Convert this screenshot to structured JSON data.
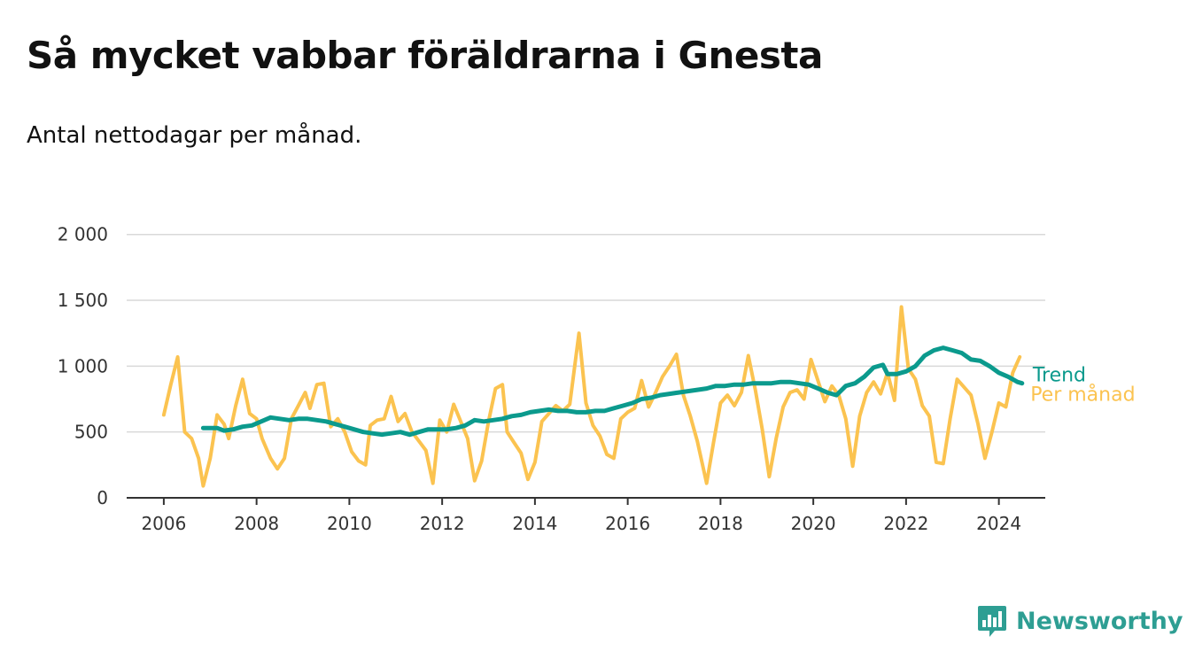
{
  "title": "Så mycket vabbar föräldrarna i Gnesta",
  "subtitle": "Antal nettodagar per månad.",
  "brand": {
    "name": "Newsworthy",
    "icon": "bar-chart-badge-icon",
    "color": "#2e9e93"
  },
  "chart_data": {
    "type": "line",
    "title": "Så mycket vabbar föräldrarna i Gnesta",
    "subtitle": "Antal nettodagar per månad.",
    "xlabel": "",
    "ylabel": "",
    "x_range": [
      2005.2,
      2025.0
    ],
    "ylim": [
      0,
      2200
    ],
    "x_ticks": [
      {
        "value": 2006,
        "label": "2006"
      },
      {
        "value": 2008,
        "label": "2008"
      },
      {
        "value": 2010,
        "label": "2010"
      },
      {
        "value": 2012,
        "label": "2012"
      },
      {
        "value": 2014,
        "label": "2014"
      },
      {
        "value": 2016,
        "label": "2016"
      },
      {
        "value": 2018,
        "label": "2018"
      },
      {
        "value": 2020,
        "label": "2020"
      },
      {
        "value": 2022,
        "label": "2022"
      },
      {
        "value": 2024,
        "label": "2024"
      }
    ],
    "y_ticks": [
      {
        "value": 0,
        "label": "0"
      },
      {
        "value": 500,
        "label": "500"
      },
      {
        "value": 1000,
        "label": "1 000"
      },
      {
        "value": 1500,
        "label": "1 500"
      },
      {
        "value": 2000,
        "label": "2 000"
      }
    ],
    "grid": true,
    "legend": "inline labels at line ends",
    "series": [
      {
        "name": "Per månad",
        "color": "#fbc350",
        "points": [
          [
            2006.0,
            630
          ],
          [
            2006.15,
            860
          ],
          [
            2006.3,
            1070
          ],
          [
            2006.45,
            500
          ],
          [
            2006.6,
            450
          ],
          [
            2006.75,
            300
          ],
          [
            2006.85,
            90
          ],
          [
            2007.0,
            300
          ],
          [
            2007.15,
            630
          ],
          [
            2007.3,
            560
          ],
          [
            2007.4,
            450
          ],
          [
            2007.55,
            700
          ],
          [
            2007.7,
            900
          ],
          [
            2007.85,
            640
          ],
          [
            2008.0,
            600
          ],
          [
            2008.12,
            450
          ],
          [
            2008.3,
            300
          ],
          [
            2008.45,
            220
          ],
          [
            2008.6,
            300
          ],
          [
            2008.75,
            600
          ],
          [
            2008.9,
            700
          ],
          [
            2009.05,
            800
          ],
          [
            2009.15,
            680
          ],
          [
            2009.3,
            860
          ],
          [
            2009.45,
            870
          ],
          [
            2009.6,
            540
          ],
          [
            2009.75,
            600
          ],
          [
            2009.9,
            500
          ],
          [
            2010.05,
            350
          ],
          [
            2010.2,
            280
          ],
          [
            2010.35,
            250
          ],
          [
            2010.45,
            550
          ],
          [
            2010.6,
            590
          ],
          [
            2010.75,
            600
          ],
          [
            2010.9,
            770
          ],
          [
            2011.05,
            580
          ],
          [
            2011.2,
            640
          ],
          [
            2011.35,
            500
          ],
          [
            2011.5,
            430
          ],
          [
            2011.65,
            360
          ],
          [
            2011.8,
            110
          ],
          [
            2011.95,
            590
          ],
          [
            2012.1,
            500
          ],
          [
            2012.25,
            710
          ],
          [
            2012.4,
            580
          ],
          [
            2012.55,
            450
          ],
          [
            2012.7,
            130
          ],
          [
            2012.85,
            280
          ],
          [
            2013.0,
            580
          ],
          [
            2013.15,
            830
          ],
          [
            2013.3,
            860
          ],
          [
            2013.4,
            500
          ],
          [
            2013.55,
            420
          ],
          [
            2013.7,
            340
          ],
          [
            2013.85,
            140
          ],
          [
            2014.0,
            270
          ],
          [
            2014.15,
            580
          ],
          [
            2014.3,
            640
          ],
          [
            2014.45,
            700
          ],
          [
            2014.6,
            660
          ],
          [
            2014.75,
            710
          ],
          [
            2014.95,
            1250
          ],
          [
            2015.1,
            720
          ],
          [
            2015.25,
            550
          ],
          [
            2015.4,
            470
          ],
          [
            2015.55,
            330
          ],
          [
            2015.7,
            300
          ],
          [
            2015.85,
            600
          ],
          [
            2016.0,
            650
          ],
          [
            2016.15,
            680
          ],
          [
            2016.3,
            890
          ],
          [
            2016.45,
            690
          ],
          [
            2016.6,
            800
          ],
          [
            2016.75,
            920
          ],
          [
            2016.9,
            1000
          ],
          [
            2017.05,
            1090
          ],
          [
            2017.2,
            780
          ],
          [
            2017.35,
            620
          ],
          [
            2017.5,
            430
          ],
          [
            2017.7,
            110
          ],
          [
            2017.85,
            420
          ],
          [
            2018.0,
            720
          ],
          [
            2018.15,
            780
          ],
          [
            2018.3,
            700
          ],
          [
            2018.45,
            800
          ],
          [
            2018.6,
            1080
          ],
          [
            2018.75,
            820
          ],
          [
            2018.9,
            520
          ],
          [
            2019.05,
            160
          ],
          [
            2019.2,
            450
          ],
          [
            2019.35,
            690
          ],
          [
            2019.5,
            800
          ],
          [
            2019.65,
            820
          ],
          [
            2019.8,
            750
          ],
          [
            2019.95,
            1050
          ],
          [
            2020.1,
            890
          ],
          [
            2020.25,
            730
          ],
          [
            2020.4,
            850
          ],
          [
            2020.55,
            780
          ],
          [
            2020.7,
            600
          ],
          [
            2020.85,
            240
          ],
          [
            2021.0,
            620
          ],
          [
            2021.15,
            800
          ],
          [
            2021.3,
            880
          ],
          [
            2021.45,
            790
          ],
          [
            2021.6,
            950
          ],
          [
            2021.75,
            740
          ],
          [
            2021.9,
            1450
          ],
          [
            2022.05,
            980
          ],
          [
            2022.2,
            900
          ],
          [
            2022.35,
            700
          ],
          [
            2022.5,
            620
          ],
          [
            2022.65,
            270
          ],
          [
            2022.8,
            260
          ],
          [
            2022.95,
            600
          ],
          [
            2023.1,
            900
          ],
          [
            2023.25,
            840
          ],
          [
            2023.4,
            780
          ],
          [
            2023.55,
            560
          ],
          [
            2023.7,
            300
          ],
          [
            2023.85,
            500
          ],
          [
            2024.0,
            720
          ],
          [
            2024.15,
            690
          ],
          [
            2024.3,
            950
          ],
          [
            2024.45,
            1070
          ]
        ]
      },
      {
        "name": "Trend",
        "color": "#0b9a8d",
        "points": [
          [
            2006.85,
            530
          ],
          [
            2007.0,
            530
          ],
          [
            2007.15,
            530
          ],
          [
            2007.3,
            510
          ],
          [
            2007.5,
            520
          ],
          [
            2007.7,
            540
          ],
          [
            2007.9,
            550
          ],
          [
            2008.1,
            580
          ],
          [
            2008.3,
            610
          ],
          [
            2008.5,
            600
          ],
          [
            2008.7,
            590
          ],
          [
            2008.9,
            600
          ],
          [
            2009.1,
            600
          ],
          [
            2009.3,
            590
          ],
          [
            2009.5,
            580
          ],
          [
            2009.7,
            560
          ],
          [
            2009.9,
            540
          ],
          [
            2010.1,
            520
          ],
          [
            2010.3,
            500
          ],
          [
            2010.5,
            490
          ],
          [
            2010.7,
            480
          ],
          [
            2010.9,
            490
          ],
          [
            2011.1,
            500
          ],
          [
            2011.3,
            480
          ],
          [
            2011.5,
            500
          ],
          [
            2011.7,
            520
          ],
          [
            2011.9,
            520
          ],
          [
            2012.1,
            520
          ],
          [
            2012.3,
            530
          ],
          [
            2012.5,
            550
          ],
          [
            2012.7,
            590
          ],
          [
            2012.9,
            580
          ],
          [
            2013.1,
            590
          ],
          [
            2013.3,
            600
          ],
          [
            2013.5,
            620
          ],
          [
            2013.7,
            630
          ],
          [
            2013.9,
            650
          ],
          [
            2014.1,
            660
          ],
          [
            2014.3,
            670
          ],
          [
            2014.5,
            660
          ],
          [
            2014.7,
            660
          ],
          [
            2014.9,
            650
          ],
          [
            2015.1,
            650
          ],
          [
            2015.3,
            660
          ],
          [
            2015.5,
            660
          ],
          [
            2015.7,
            680
          ],
          [
            2015.9,
            700
          ],
          [
            2016.1,
            720
          ],
          [
            2016.3,
            750
          ],
          [
            2016.5,
            760
          ],
          [
            2016.7,
            780
          ],
          [
            2016.9,
            790
          ],
          [
            2017.1,
            800
          ],
          [
            2017.3,
            810
          ],
          [
            2017.5,
            820
          ],
          [
            2017.7,
            830
          ],
          [
            2017.9,
            850
          ],
          [
            2018.1,
            850
          ],
          [
            2018.3,
            860
          ],
          [
            2018.5,
            860
          ],
          [
            2018.7,
            870
          ],
          [
            2018.9,
            870
          ],
          [
            2019.1,
            870
          ],
          [
            2019.3,
            880
          ],
          [
            2019.5,
            880
          ],
          [
            2019.7,
            870
          ],
          [
            2019.9,
            860
          ],
          [
            2020.1,
            830
          ],
          [
            2020.3,
            800
          ],
          [
            2020.5,
            780
          ],
          [
            2020.7,
            850
          ],
          [
            2020.9,
            870
          ],
          [
            2021.1,
            920
          ],
          [
            2021.3,
            990
          ],
          [
            2021.5,
            1010
          ],
          [
            2021.6,
            940
          ],
          [
            2021.8,
            940
          ],
          [
            2022.0,
            960
          ],
          [
            2022.2,
            1000
          ],
          [
            2022.4,
            1080
          ],
          [
            2022.6,
            1120
          ],
          [
            2022.8,
            1140
          ],
          [
            2023.0,
            1120
          ],
          [
            2023.2,
            1100
          ],
          [
            2023.4,
            1050
          ],
          [
            2023.6,
            1040
          ],
          [
            2023.8,
            1000
          ],
          [
            2024.0,
            950
          ],
          [
            2024.2,
            920
          ],
          [
            2024.4,
            880
          ],
          [
            2024.5,
            870
          ]
        ]
      }
    ]
  }
}
